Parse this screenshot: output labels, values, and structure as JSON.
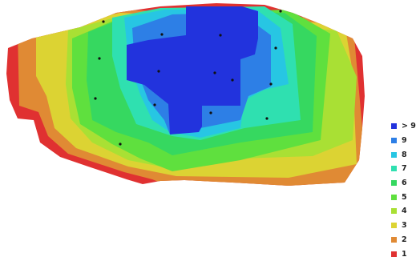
{
  "map": {
    "colors": {
      "c10": "#2233dd",
      "c9": "#2d7fe6",
      "c8": "#27c6e3",
      "c7": "#2fe0b0",
      "c6": "#36d860",
      "c5": "#5fe03e",
      "c4": "#a9e034",
      "c3": "#dcd333",
      "c2": "#e08a34",
      "c1": "#e03131"
    },
    "camera_marker_icon": "dot-icon",
    "camera_count": 15
  },
  "legend": {
    "items": [
      {
        "label": "> 9",
        "color": "#2233dd"
      },
      {
        "label": "9",
        "color": "#2d7fe6"
      },
      {
        "label": "8",
        "color": "#27c6e3"
      },
      {
        "label": "7",
        "color": "#2fe0b0"
      },
      {
        "label": "6",
        "color": "#36d860"
      },
      {
        "label": "5",
        "color": "#5fe03e"
      },
      {
        "label": "4",
        "color": "#a9e034"
      },
      {
        "label": "3",
        "color": "#dcd333"
      },
      {
        "label": "2",
        "color": "#e08a34"
      },
      {
        "label": "1",
        "color": "#e03131"
      }
    ]
  }
}
